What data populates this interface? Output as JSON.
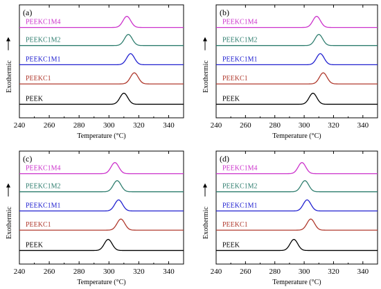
{
  "chart_data": [
    {
      "type": "line",
      "panel_label": "(a)",
      "xlabel": "Temperature (°C)",
      "ylabel": "Exothermic",
      "xlim": [
        240,
        350
      ],
      "xticks": [
        "240",
        "260",
        "280",
        "300",
        "320",
        "340"
      ],
      "series": [
        {
          "name": "PEEK",
          "peak_x": 310,
          "color": "#000000"
        },
        {
          "name": "PEEKC1",
          "peak_x": 317,
          "color": "#b03a2e"
        },
        {
          "name": "PEEKC1M1",
          "peak_x": 314.5,
          "color": "#2020d0"
        },
        {
          "name": "PEEKC1M2",
          "peak_x": 313,
          "color": "#2e7d6e"
        },
        {
          "name": "PEEKC1M4",
          "peak_x": 312,
          "color": "#cc33cc"
        }
      ]
    },
    {
      "type": "line",
      "panel_label": "(b)",
      "xlabel": "Temperature (°C)",
      "ylabel": "Exothermic",
      "xlim": [
        240,
        350
      ],
      "xticks": [
        "240",
        "260",
        "280",
        "300",
        "320",
        "340"
      ],
      "series": [
        {
          "name": "PEEK",
          "peak_x": 306,
          "color": "#000000"
        },
        {
          "name": "PEEKC1",
          "peak_x": 313,
          "color": "#b03a2e"
        },
        {
          "name": "PEEKC1M1",
          "peak_x": 311,
          "color": "#2020d0"
        },
        {
          "name": "PEEKC1M2",
          "peak_x": 310,
          "color": "#2e7d6e"
        },
        {
          "name": "PEEKC1M4",
          "peak_x": 308.5,
          "color": "#cc33cc"
        }
      ]
    },
    {
      "type": "line",
      "panel_label": "(c)",
      "xlabel": "Temperature (°C)",
      "ylabel": "Exothermic",
      "xlim": [
        240,
        350
      ],
      "xticks": [
        "240",
        "260",
        "280",
        "300",
        "320",
        "340"
      ],
      "series": [
        {
          "name": "PEEK",
          "peak_x": 299.5,
          "color": "#000000"
        },
        {
          "name": "PEEKC1",
          "peak_x": 308,
          "color": "#b03a2e"
        },
        {
          "name": "PEEKC1M1",
          "peak_x": 306.5,
          "color": "#2020d0"
        },
        {
          "name": "PEEKC1M2",
          "peak_x": 305.5,
          "color": "#2e7d6e"
        },
        {
          "name": "PEEKC1M4",
          "peak_x": 304,
          "color": "#cc33cc"
        }
      ]
    },
    {
      "type": "line",
      "panel_label": "(d)",
      "xlabel": "Temperature (°C)",
      "ylabel": "Exothermic",
      "xlim": [
        240,
        350
      ],
      "xticks": [
        "240",
        "260",
        "280",
        "300",
        "320",
        "340"
      ],
      "series": [
        {
          "name": "PEEK",
          "peak_x": 293,
          "color": "#000000"
        },
        {
          "name": "PEEKC1",
          "peak_x": 304.5,
          "color": "#b03a2e"
        },
        {
          "name": "PEEKC1M1",
          "peak_x": 302,
          "color": "#2020d0"
        },
        {
          "name": "PEEKC1M2",
          "peak_x": 300.5,
          "color": "#2e7d6e"
        },
        {
          "name": "PEEKC1M4",
          "peak_x": 298.5,
          "color": "#cc33cc"
        }
      ]
    }
  ]
}
